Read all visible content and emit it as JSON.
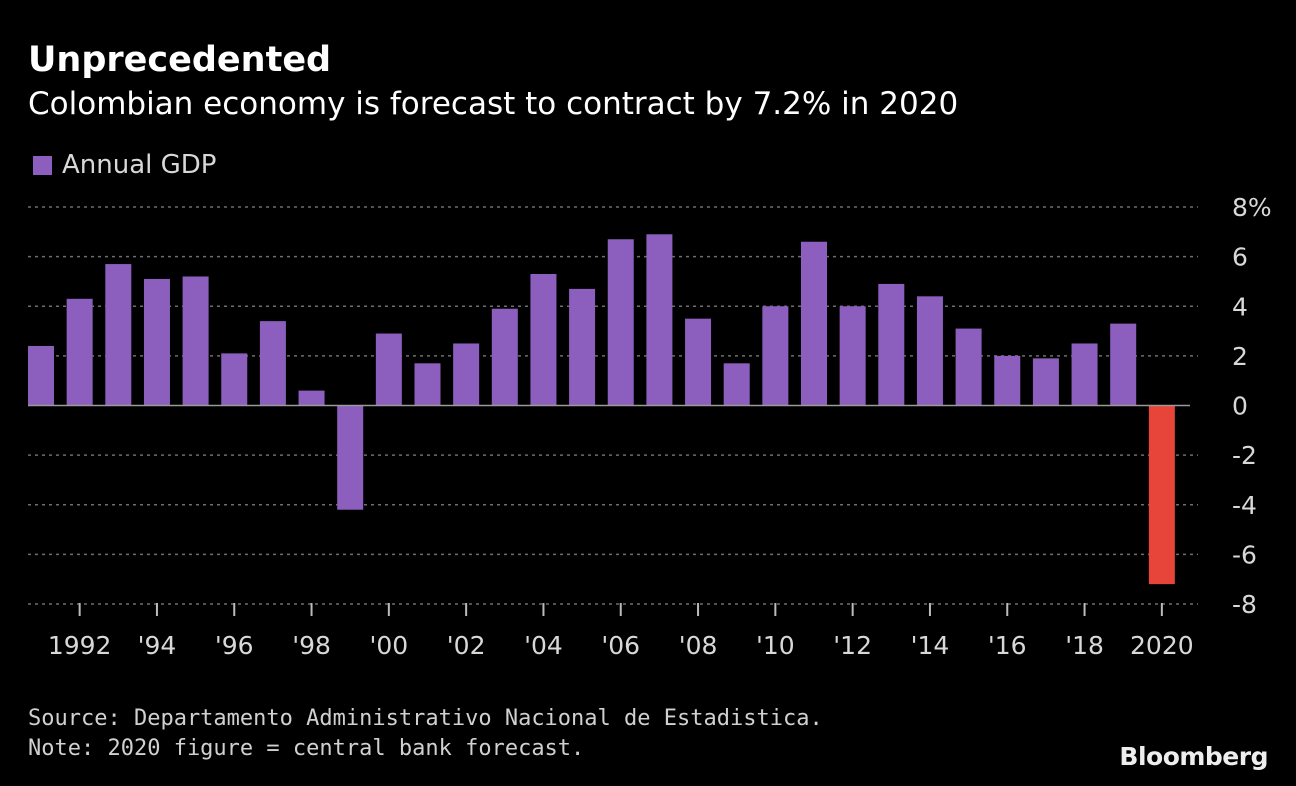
{
  "colors": {
    "background": "#000000",
    "series": "#8c5fbf",
    "forecast": "#e8453a",
    "grid": "#6e6e6e",
    "text": "#d8d8d8"
  },
  "chart_data": {
    "type": "bar",
    "title": "Unprecedented",
    "subtitle": "Colombian economy is forecast to contract by 7.2% in 2020",
    "legend": [
      "Annual GDP"
    ],
    "legend_position": "top-left",
    "grid": true,
    "ylim": [
      -8,
      8
    ],
    "y_ticks": [
      8,
      6,
      4,
      2,
      0,
      -2,
      -4,
      -6,
      -8
    ],
    "y_tick_labels": [
      "8%",
      "6",
      "4",
      "2",
      "0",
      "-2",
      "-4",
      "-6",
      "-8"
    ],
    "y_axis_side": "right",
    "categories": [
      1991,
      1992,
      1993,
      1994,
      1995,
      1996,
      1997,
      1998,
      1999,
      2000,
      2001,
      2002,
      2003,
      2004,
      2005,
      2006,
      2007,
      2008,
      2009,
      2010,
      2011,
      2012,
      2013,
      2014,
      2015,
      2016,
      2017,
      2018,
      2019,
      2020
    ],
    "x_tick_labels": [
      {
        "year": 1992,
        "label": "1992"
      },
      {
        "year": 1994,
        "label": "'94"
      },
      {
        "year": 1996,
        "label": "'96"
      },
      {
        "year": 1998,
        "label": "'98"
      },
      {
        "year": 2000,
        "label": "'00"
      },
      {
        "year": 2002,
        "label": "'02"
      },
      {
        "year": 2004,
        "label": "'04"
      },
      {
        "year": 2006,
        "label": "'06"
      },
      {
        "year": 2008,
        "label": "'08"
      },
      {
        "year": 2010,
        "label": "'10"
      },
      {
        "year": 2012,
        "label": "'12"
      },
      {
        "year": 2014,
        "label": "'14"
      },
      {
        "year": 2016,
        "label": "'16"
      },
      {
        "year": 2018,
        "label": "'18"
      },
      {
        "year": 2020,
        "label": "2020"
      }
    ],
    "series": [
      {
        "name": "Annual GDP",
        "values": [
          2.4,
          4.3,
          5.7,
          5.1,
          5.2,
          2.1,
          3.4,
          0.6,
          -4.2,
          2.9,
          1.7,
          2.5,
          3.9,
          5.3,
          4.7,
          6.7,
          6.9,
          3.5,
          1.7,
          4.0,
          6.6,
          4.0,
          4.9,
          4.4,
          3.1,
          2.0,
          1.9,
          2.5,
          3.3,
          -7.2
        ]
      }
    ],
    "forecast_years": [
      2020
    ]
  },
  "footer": {
    "source": "Source: Departamento Administrativo Nacional de Estadistica.",
    "note": "Note: 2020 figure = central bank forecast."
  },
  "brand": "Bloomberg"
}
